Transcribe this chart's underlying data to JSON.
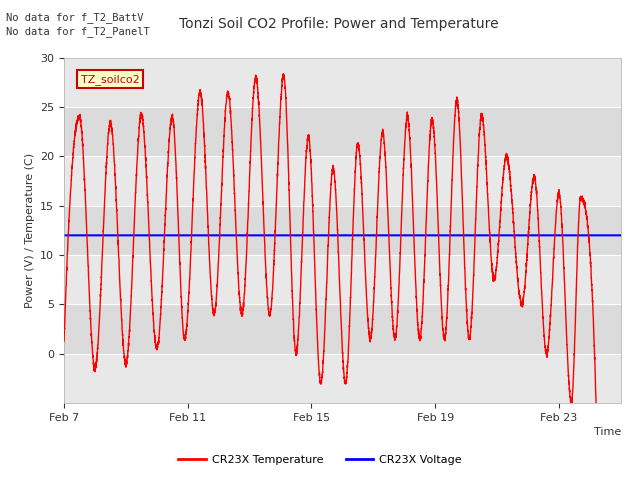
{
  "title": "Tonzi Soil CO2 Profile: Power and Temperature",
  "ylabel": "Power (V) / Temperature (C)",
  "xlabel": "Time",
  "no_data_texts": [
    "No data for f_T2_BattV",
    "No data for f_T2_PanelT"
  ],
  "legend_box_label": "TZ_soilco2",
  "ylim": [
    -5,
    30
  ],
  "y_ticks": [
    0,
    5,
    10,
    15,
    20,
    25,
    30
  ],
  "x_tick_labels": [
    "Feb 7",
    "Feb 11",
    "Feb 15",
    "Feb 19",
    "Feb 23"
  ],
  "x_tick_positions": [
    0,
    4,
    8,
    12,
    16
  ],
  "blue_line_value": 12.0,
  "red_line_color": "#ff0000",
  "blue_line_color": "#0000ff",
  "background_color": "#ffffff",
  "plot_bg_color": "#e8e8e8",
  "legend_entries": [
    "CR23X Temperature",
    "CR23X Voltage"
  ],
  "total_days": 18.0,
  "peak_days": [
    0.5,
    1.5,
    2.5,
    3.5,
    4.4,
    5.3,
    6.2,
    7.1,
    7.9,
    8.7,
    9.5,
    10.3,
    11.1,
    11.9,
    12.7,
    13.5,
    14.3,
    15.2,
    16.0,
    16.7
  ],
  "peak_vals": [
    24.0,
    23.4,
    24.2,
    24.0,
    26.5,
    26.5,
    28.0,
    28.2,
    22.0,
    18.8,
    21.3,
    22.4,
    24.0,
    23.8,
    25.7,
    24.2,
    20.0,
    18.0,
    16.2,
    15.8
  ],
  "valley_days": [
    0.0,
    1.0,
    2.0,
    3.0,
    3.9,
    4.85,
    5.75,
    6.65,
    7.5,
    8.3,
    9.1,
    9.9,
    10.7,
    11.5,
    12.3,
    13.1,
    13.9,
    14.8,
    15.6,
    16.4,
    17.2
  ],
  "valley_vals": [
    1.0,
    -1.5,
    -1.0,
    0.5,
    1.5,
    4.0,
    4.0,
    4.0,
    0.0,
    -3.0,
    -3.0,
    1.5,
    1.5,
    1.5,
    1.5,
    1.5,
    7.5,
    5.0,
    0.0,
    -5.0,
    -5.0
  ]
}
